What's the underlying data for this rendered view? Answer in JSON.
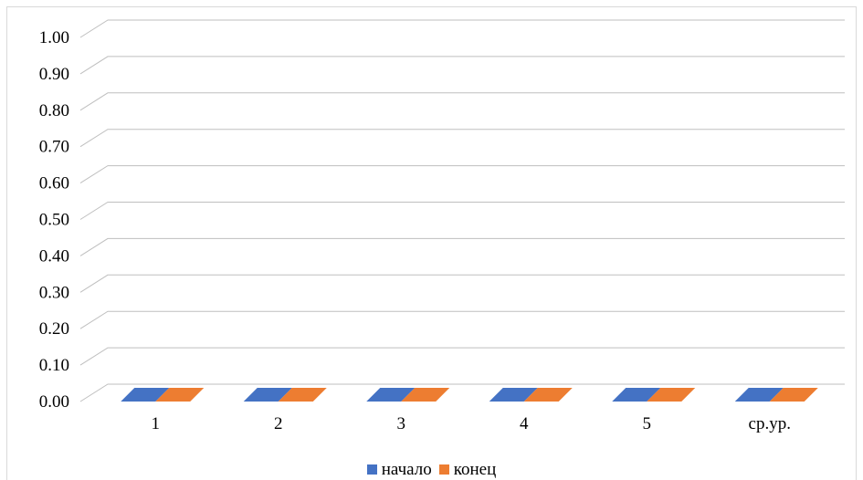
{
  "chart_data": {
    "type": "bar",
    "categories": [
      "1",
      "2",
      "3",
      "4",
      "5",
      "ср.ур."
    ],
    "series": [
      {
        "name": "начало",
        "values": [
          0,
          0,
          0,
          0,
          0,
          0
        ],
        "color": "#4472c4"
      },
      {
        "name": "конец",
        "values": [
          0,
          0,
          0,
          0,
          0,
          0
        ],
        "color": "#ed7d31"
      }
    ],
    "ylim": [
      0,
      1
    ],
    "yticks": [
      "0.00",
      "0.10",
      "0.20",
      "0.30",
      "0.40",
      "0.50",
      "0.60",
      "0.70",
      "0.80",
      "0.90",
      "1.00"
    ],
    "grid": true,
    "perspective_3d": true,
    "legend_position": "bottom",
    "gridline_color": "#bfbfbf"
  }
}
